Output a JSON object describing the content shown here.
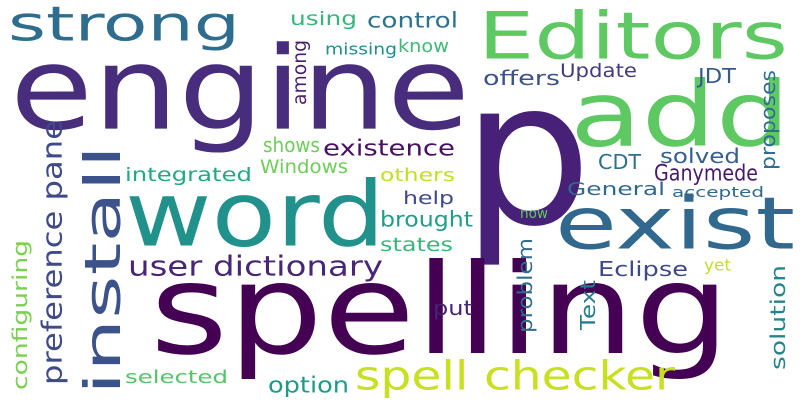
{
  "words": [
    {
      "text": "p",
      "color": "#472178"
    },
    {
      "text": "spelling",
      "color": "#440154"
    },
    {
      "text": "engine",
      "color": "#472d7b"
    },
    {
      "text": "word",
      "color": "#21918c"
    },
    {
      "text": "add",
      "color": "#5ec962"
    },
    {
      "text": "exist",
      "color": "#31688e"
    },
    {
      "text": "Editors",
      "color": "#5ec962"
    },
    {
      "text": "strong",
      "color": "#2f6d8e"
    },
    {
      "text": "install",
      "color": "#3b528b"
    },
    {
      "text": "spell checker",
      "color": "#c8e020"
    },
    {
      "text": "user dictionary",
      "color": "#482677"
    },
    {
      "text": "preference pane",
      "color": "#3e4a89"
    },
    {
      "text": "configuring",
      "color": "#7ad151"
    },
    {
      "text": "using",
      "color": "#35b779"
    },
    {
      "text": "control",
      "color": "#2c728e"
    },
    {
      "text": "among",
      "color": "#481f70"
    },
    {
      "text": "missing",
      "color": "#228c8d"
    },
    {
      "text": "know",
      "color": "#3bbb75"
    },
    {
      "text": "offers",
      "color": "#3b528b"
    },
    {
      "text": "Update",
      "color": "#443983"
    },
    {
      "text": "JDT",
      "color": "#38598c"
    },
    {
      "text": "proposes",
      "color": "#2e6f8e"
    },
    {
      "text": "shows",
      "color": "#6ccd5a"
    },
    {
      "text": "existence",
      "color": "#471063"
    },
    {
      "text": "Windows",
      "color": "#6ece58"
    },
    {
      "text": "integrated",
      "color": "#22a884"
    },
    {
      "text": "CDT",
      "color": "#2d708e"
    },
    {
      "text": "solved",
      "color": "#355f8d"
    },
    {
      "text": "Ganymede",
      "color": "#481a6c"
    },
    {
      "text": "others",
      "color": "#c2df23"
    },
    {
      "text": "help",
      "color": "#3e4a89"
    },
    {
      "text": "General",
      "color": "#31688e"
    },
    {
      "text": "accepted",
      "color": "#31688e"
    },
    {
      "text": "brought",
      "color": "#1f9e89"
    },
    {
      "text": "states",
      "color": "#35b779"
    },
    {
      "text": "now",
      "color": "#5ec962"
    },
    {
      "text": "Eclipse",
      "color": "#3e4989"
    },
    {
      "text": "yet",
      "color": "#c2df23"
    },
    {
      "text": "put",
      "color": "#482475"
    },
    {
      "text": "problem",
      "color": "#2f6c8e"
    },
    {
      "text": "Text",
      "color": "#287c8e"
    },
    {
      "text": "solution",
      "color": "#25858e"
    },
    {
      "text": "selected",
      "color": "#54c568"
    },
    {
      "text": "option",
      "color": "#1f9a8a"
    }
  ]
}
